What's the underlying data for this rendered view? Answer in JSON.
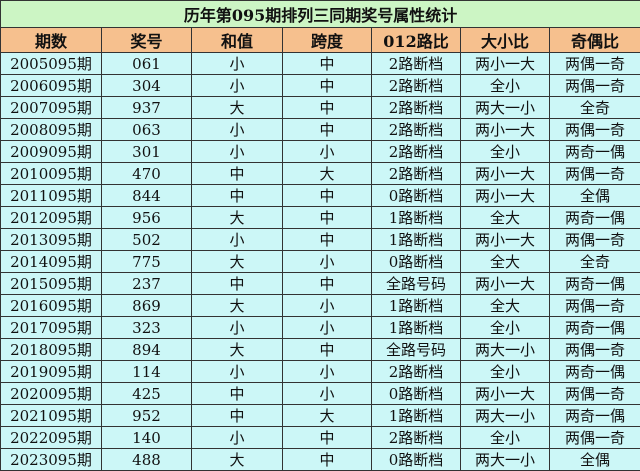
{
  "title": "历年第095期排列三同期奖号属性统计",
  "headers": [
    "期数",
    "奖号",
    "和值",
    "跨度",
    "012路比",
    "大小比",
    "奇偶比"
  ],
  "colors": {
    "title_bg": "#ccf5c4",
    "header_bg": "#f6c08e",
    "row_bg": "#ccf7f7"
  },
  "rows": [
    [
      "2005095期",
      "061",
      "小",
      "中",
      "2路断档",
      "两小一大",
      "两偶一奇"
    ],
    [
      "2006095期",
      "304",
      "小",
      "中",
      "2路断档",
      "全小",
      "两偶一奇"
    ],
    [
      "2007095期",
      "937",
      "大",
      "中",
      "2路断档",
      "两大一小",
      "全奇"
    ],
    [
      "2008095期",
      "063",
      "小",
      "中",
      "2路断档",
      "两小一大",
      "两偶一奇"
    ],
    [
      "2009095期",
      "301",
      "小",
      "小",
      "2路断档",
      "全小",
      "两奇一偶"
    ],
    [
      "2010095期",
      "470",
      "中",
      "大",
      "2路断档",
      "两小一大",
      "两偶一奇"
    ],
    [
      "2011095期",
      "844",
      "中",
      "中",
      "0路断档",
      "两小一大",
      "全偶"
    ],
    [
      "2012095期",
      "956",
      "大",
      "中",
      "1路断档",
      "全大",
      "两奇一偶"
    ],
    [
      "2013095期",
      "502",
      "小",
      "中",
      "1路断档",
      "两小一大",
      "两偶一奇"
    ],
    [
      "2014095期",
      "775",
      "大",
      "小",
      "0路断档",
      "全大",
      "全奇"
    ],
    [
      "2015095期",
      "237",
      "中",
      "中",
      "全路号码",
      "两小一大",
      "两奇一偶"
    ],
    [
      "2016095期",
      "869",
      "大",
      "小",
      "1路断档",
      "全大",
      "两偶一奇"
    ],
    [
      "2017095期",
      "323",
      "小",
      "小",
      "1路断档",
      "全小",
      "两奇一偶"
    ],
    [
      "2018095期",
      "894",
      "大",
      "中",
      "全路号码",
      "两大一小",
      "两偶一奇"
    ],
    [
      "2019095期",
      "114",
      "小",
      "小",
      "2路断档",
      "全小",
      "两奇一偶"
    ],
    [
      "2020095期",
      "425",
      "中",
      "小",
      "0路断档",
      "两小一大",
      "两偶一奇"
    ],
    [
      "2021095期",
      "952",
      "中",
      "大",
      "1路断档",
      "两大一小",
      "两奇一偶"
    ],
    [
      "2022095期",
      "140",
      "小",
      "中",
      "2路断档",
      "全小",
      "两偶一奇"
    ],
    [
      "2023095期",
      "488",
      "大",
      "中",
      "0路断档",
      "两大一小",
      "全偶"
    ]
  ]
}
